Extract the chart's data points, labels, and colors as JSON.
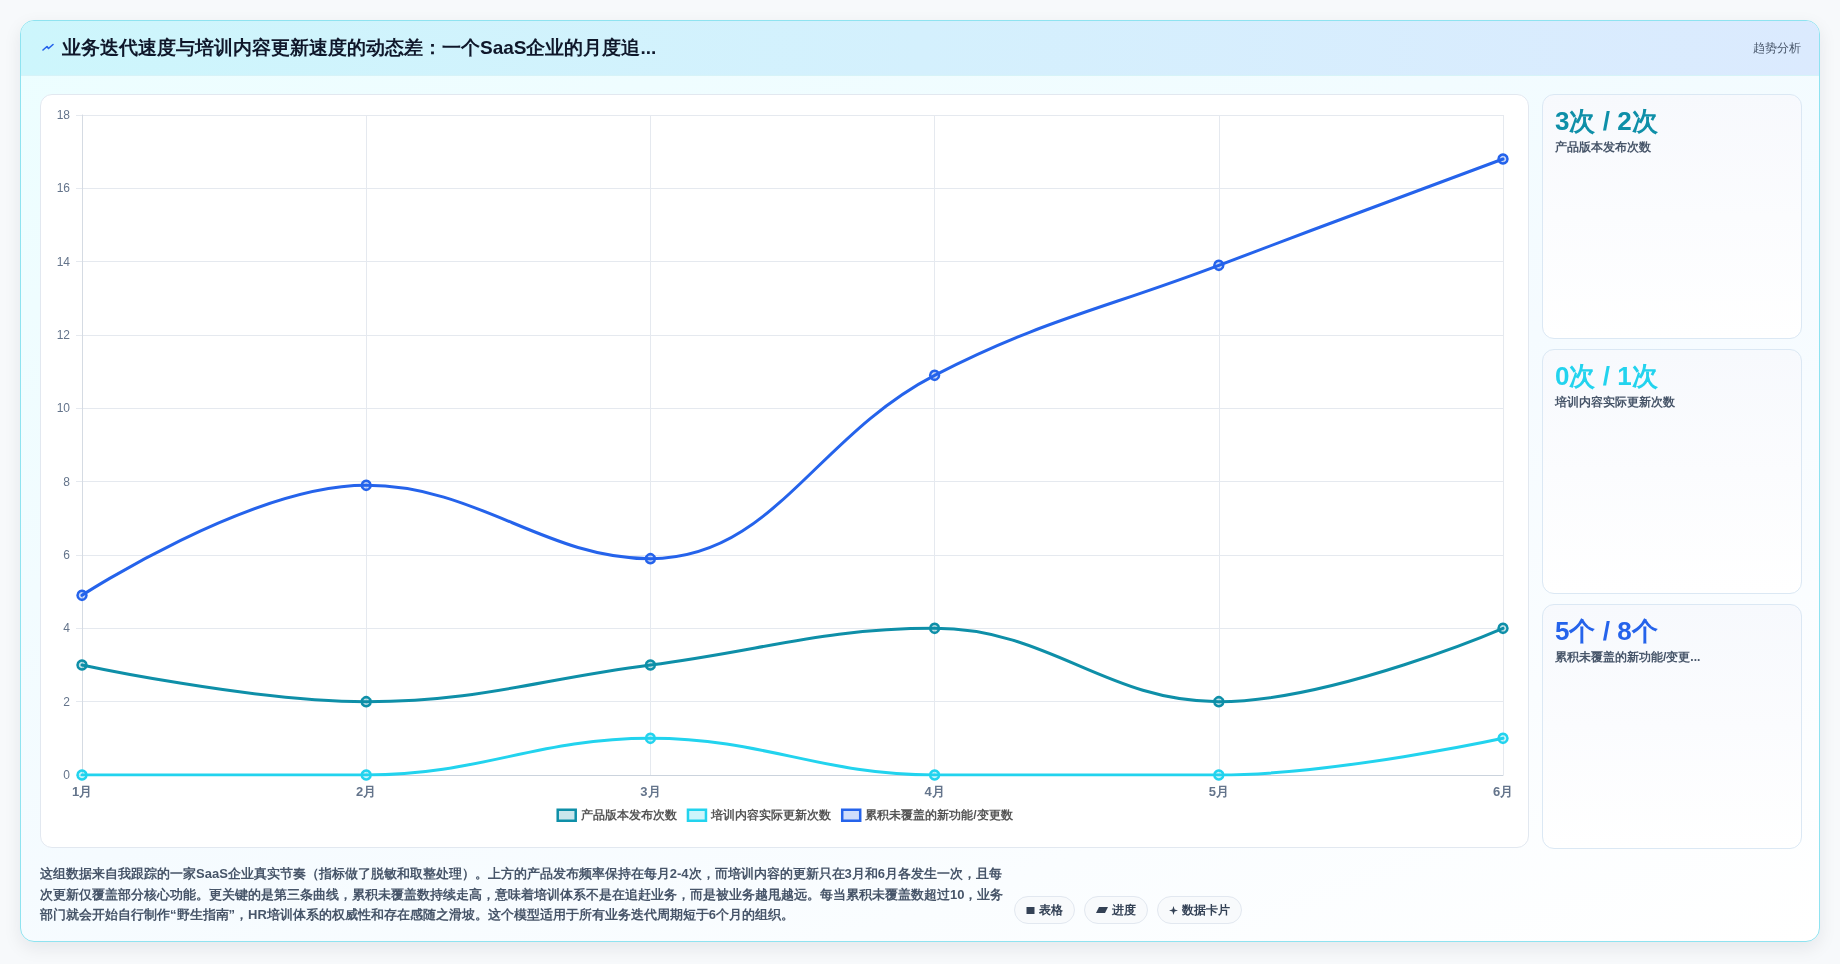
{
  "chart_data": [
    {
      "type": "line",
      "title": "业务迭代速度与培训内容更新速度的动态差：一个SaaS企业的月度追...",
      "categories": [
        "1月",
        "2月",
        "3月",
        "4月",
        "5月",
        "6月"
      ],
      "series": [
        {
          "name": "产品版本发布次数",
          "color": "#0e8fa8",
          "values": [
            3,
            2,
            3,
            4,
            2,
            4
          ]
        },
        {
          "name": "培训内容实际更新次数",
          "color": "#22d3ee",
          "values": [
            0,
            0,
            1,
            0,
            0,
            1
          ]
        },
        {
          "name": "累积未覆盖的新功能/变更数",
          "color": "#2563eb",
          "values": [
            4.9,
            7.9,
            5.9,
            10.9,
            13.9,
            16.8
          ]
        }
      ],
      "ylim": [
        0,
        18
      ],
      "yticks": [
        0,
        2,
        4,
        6,
        8,
        10,
        12,
        14,
        16,
        18
      ],
      "grid": true,
      "legend": "bottom",
      "marker": "circle",
      "line_style": "solid",
      "annotations": [
        "趋势分析",
        "这组数据来自我跟踪的一家SaaS企业真实节奏（指标做了脱敏和取整处理）。上方的产品发布频率保持在每月2-4次，而培训内容的更新只在3月和6月各发生一次，且每次更新仅覆盖部分核心功能。更关键的是第三条曲线，累积未覆盖数持续走高，意味着培训体系不是在追赶业务，而是被业务越甩越远。每当累积未覆盖数超过10，业务部门就会开始自行制作“野生指南”，HR培训体系的权威性和存在感随之滑坡。这个模型适用于所有业务迭代周期短于6个月的组织。",
        "表格",
        "进度",
        "数据卡片"
      ]
    },
    {
      "type": "other",
      "color": "#0e8fa8",
      "annotations": [
        "3次 / 2次",
        "产品版本发布次数"
      ]
    },
    {
      "type": "other",
      "color": "#22d3ee",
      "annotations": [
        "0次 / 1次",
        "培训内容实际更新次数"
      ]
    },
    {
      "type": "other",
      "color": "#2563eb",
      "annotations": [
        "5个 / 8个",
        "累积未覆盖的新功能/变更..."
      ]
    }
  ]
}
